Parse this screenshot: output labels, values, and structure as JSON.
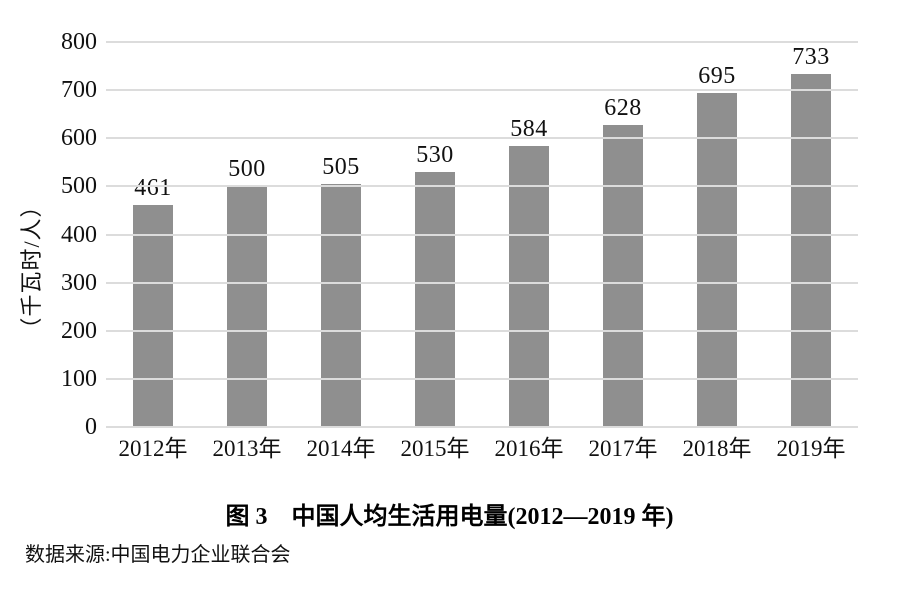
{
  "figure": {
    "caption": "图 3　中国人均生活用电量(2012—2019 年)",
    "source": "数据来源:中国电力企业联合会"
  },
  "chart_data": {
    "type": "bar",
    "title": "图 3　中国人均生活用电量(2012—2019 年)",
    "categories": [
      "2012年",
      "2013年",
      "2014年",
      "2015年",
      "2016年",
      "2017年",
      "2018年",
      "2019年"
    ],
    "values": [
      461,
      500,
      505,
      530,
      584,
      628,
      695,
      733
    ],
    "data_labels": [
      461,
      500,
      505,
      530,
      584,
      628,
      695,
      733
    ],
    "xlabel": "",
    "ylabel": "（千瓦时/人）",
    "ylim": [
      0,
      800
    ],
    "yticks": [
      0,
      100,
      200,
      300,
      400,
      500,
      600,
      700,
      800
    ],
    "grid": "horizontal-only",
    "legend": "none",
    "bar_color": "#8f8f8f",
    "gridline_color": "#dcdcdc",
    "text_color": "#111111",
    "background_color": "#ffffff",
    "source": "数据来源:中国电力企业联合会"
  }
}
